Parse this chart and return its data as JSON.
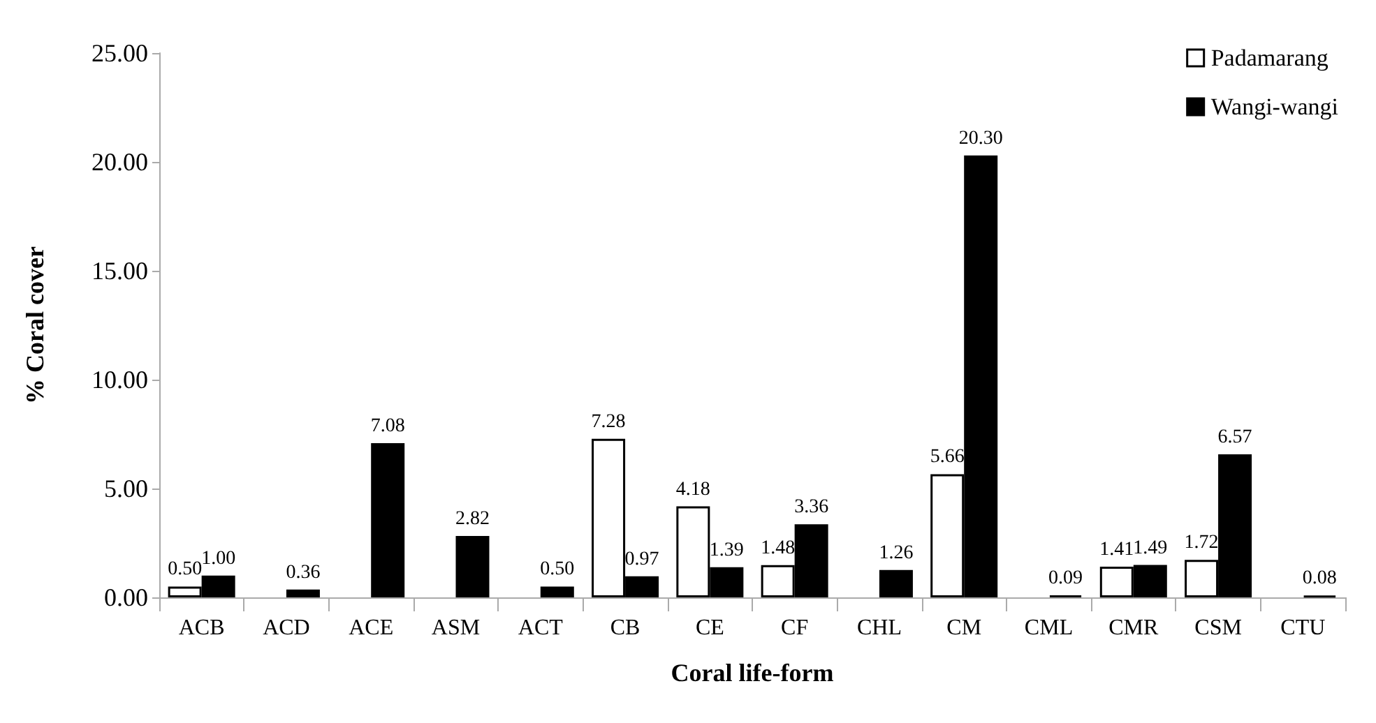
{
  "chart_data": {
    "type": "bar",
    "xlabel": "Coral life-form",
    "ylabel": "% Coral cover",
    "categories": [
      "ACB",
      "ACD",
      "ACE",
      "ASM",
      "ACT",
      "CB",
      "CE",
      "CF",
      "CHL",
      "CM",
      "CML",
      "CMR",
      "CSM",
      "CTU"
    ],
    "series": [
      {
        "name": "Padamarang",
        "color": "#ffffff",
        "values": [
          0.5,
          null,
          null,
          null,
          null,
          7.28,
          4.18,
          1.48,
          null,
          5.66,
          null,
          1.41,
          1.72,
          null
        ],
        "value_labels": [
          "0.50",
          null,
          null,
          null,
          null,
          "7.28",
          "4.18",
          "1.48",
          null,
          "5.66",
          null,
          "1.41",
          "1.72",
          null
        ]
      },
      {
        "name": "Wangi-wangi",
        "color": "#000000",
        "values": [
          1.0,
          0.36,
          7.08,
          2.82,
          0.5,
          0.97,
          1.39,
          3.36,
          1.26,
          20.3,
          0.09,
          1.49,
          6.57,
          0.08
        ],
        "value_labels": [
          "1.00",
          "0.36",
          "7.08",
          "2.82",
          "0.50",
          "0.97",
          "1.39",
          "3.36",
          "1.26",
          "20.30",
          "0.09",
          "1.49",
          "6.57",
          "0.08"
        ]
      }
    ],
    "ylim": [
      0,
      25
    ],
    "yticks": [
      {
        "value": 0,
        "label": "0.00"
      },
      {
        "value": 5,
        "label": "5.00"
      },
      {
        "value": 10,
        "label": "10.00"
      },
      {
        "value": 15,
        "label": "15.00"
      },
      {
        "value": 20,
        "label": "20.00"
      },
      {
        "value": 25,
        "label": "25.00"
      }
    ],
    "grid": false,
    "legend": "top right"
  }
}
